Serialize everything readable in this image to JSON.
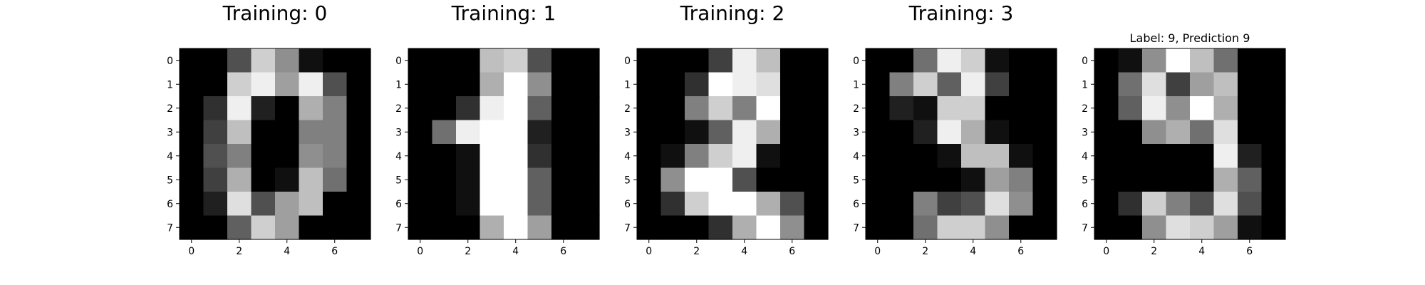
{
  "chart_data": [
    {
      "type": "heatmap",
      "title": "Training: 0",
      "xticks": [
        0,
        2,
        4,
        6
      ],
      "yticks": [
        0,
        1,
        2,
        3,
        4,
        5,
        6,
        7
      ],
      "xlim": [
        -0.5,
        7.5
      ],
      "ylim": [
        7.5,
        -0.5
      ],
      "colormap": "gray (0 = black, 16 = white)",
      "values": [
        [
          0,
          0,
          5,
          13,
          9,
          1,
          0,
          0
        ],
        [
          0,
          0,
          13,
          15,
          10,
          15,
          5,
          0
        ],
        [
          0,
          3,
          15,
          2,
          0,
          11,
          8,
          0
        ],
        [
          0,
          4,
          12,
          0,
          0,
          8,
          8,
          0
        ],
        [
          0,
          5,
          8,
          0,
          0,
          9,
          8,
          0
        ],
        [
          0,
          4,
          11,
          0,
          1,
          12,
          7,
          0
        ],
        [
          0,
          2,
          14,
          5,
          10,
          12,
          0,
          0
        ],
        [
          0,
          0,
          6,
          13,
          10,
          0,
          0,
          0
        ]
      ]
    },
    {
      "type": "heatmap",
      "title": "Training: 1",
      "xticks": [
        0,
        2,
        4,
        6
      ],
      "yticks": [
        0,
        1,
        2,
        3,
        4,
        5,
        6,
        7
      ],
      "xlim": [
        -0.5,
        7.5
      ],
      "ylim": [
        7.5,
        -0.5
      ],
      "colormap": "gray (0 = black, 16 = white)",
      "values": [
        [
          0,
          0,
          0,
          12,
          13,
          5,
          0,
          0
        ],
        [
          0,
          0,
          0,
          11,
          16,
          9,
          0,
          0
        ],
        [
          0,
          0,
          3,
          15,
          16,
          6,
          0,
          0
        ],
        [
          0,
          7,
          15,
          16,
          16,
          2,
          0,
          0
        ],
        [
          0,
          0,
          1,
          16,
          16,
          3,
          0,
          0
        ],
        [
          0,
          0,
          1,
          16,
          16,
          6,
          0,
          0
        ],
        [
          0,
          0,
          1,
          16,
          16,
          6,
          0,
          0
        ],
        [
          0,
          0,
          0,
          11,
          16,
          10,
          0,
          0
        ]
      ]
    },
    {
      "type": "heatmap",
      "title": "Training: 2",
      "xticks": [
        0,
        2,
        4,
        6
      ],
      "yticks": [
        0,
        1,
        2,
        3,
        4,
        5,
        6,
        7
      ],
      "xlim": [
        -0.5,
        7.5
      ],
      "ylim": [
        7.5,
        -0.5
      ],
      "colormap": "gray (0 = black, 16 = white)",
      "values": [
        [
          0,
          0,
          0,
          4,
          15,
          12,
          0,
          0
        ],
        [
          0,
          0,
          3,
          16,
          15,
          14,
          0,
          0
        ],
        [
          0,
          0,
          8,
          13,
          8,
          16,
          0,
          0
        ],
        [
          0,
          0,
          1,
          6,
          15,
          11,
          0,
          0
        ],
        [
          0,
          1,
          8,
          13,
          15,
          1,
          0,
          0
        ],
        [
          0,
          9,
          16,
          16,
          5,
          0,
          0,
          0
        ],
        [
          0,
          3,
          13,
          16,
          16,
          11,
          5,
          0
        ],
        [
          0,
          0,
          0,
          3,
          11,
          16,
          9,
          0
        ]
      ]
    },
    {
      "type": "heatmap",
      "title": "Training: 3",
      "xticks": [
        0,
        2,
        4,
        6
      ],
      "yticks": [
        0,
        1,
        2,
        3,
        4,
        5,
        6,
        7
      ],
      "xlim": [
        -0.5,
        7.5
      ],
      "ylim": [
        7.5,
        -0.5
      ],
      "colormap": "gray (0 = black, 16 = white)",
      "values": [
        [
          0,
          0,
          7,
          15,
          13,
          1,
          0,
          0
        ],
        [
          0,
          8,
          13,
          6,
          15,
          4,
          0,
          0
        ],
        [
          0,
          2,
          1,
          13,
          13,
          0,
          0,
          0
        ],
        [
          0,
          0,
          2,
          15,
          11,
          1,
          0,
          0
        ],
        [
          0,
          0,
          0,
          1,
          12,
          12,
          1,
          0
        ],
        [
          0,
          0,
          0,
          0,
          1,
          10,
          8,
          0
        ],
        [
          0,
          0,
          8,
          4,
          5,
          14,
          9,
          0
        ],
        [
          0,
          0,
          7,
          13,
          13,
          9,
          0,
          0
        ]
      ]
    },
    {
      "type": "heatmap",
      "title": "Label: 9, Prediction 9",
      "xticks": [
        0,
        2,
        4,
        6
      ],
      "yticks": [
        0,
        1,
        2,
        3,
        4,
        5,
        6,
        7
      ],
      "xlim": [
        -0.5,
        7.5
      ],
      "ylim": [
        7.5,
        -0.5
      ],
      "colormap": "gray (0 = black, 16 = white)",
      "values": [
        [
          0,
          1,
          9,
          16,
          12,
          7,
          0,
          0
        ],
        [
          0,
          7,
          14,
          4,
          10,
          12,
          0,
          0
        ],
        [
          0,
          6,
          15,
          9,
          16,
          11,
          0,
          0
        ],
        [
          0,
          0,
          9,
          11,
          7,
          14,
          0,
          0
        ],
        [
          0,
          0,
          0,
          0,
          0,
          15,
          2,
          0
        ],
        [
          0,
          0,
          0,
          0,
          0,
          11,
          6,
          0
        ],
        [
          0,
          3,
          13,
          8,
          5,
          14,
          5,
          0
        ],
        [
          0,
          0,
          9,
          14,
          13,
          10,
          1,
          0
        ]
      ]
    }
  ]
}
